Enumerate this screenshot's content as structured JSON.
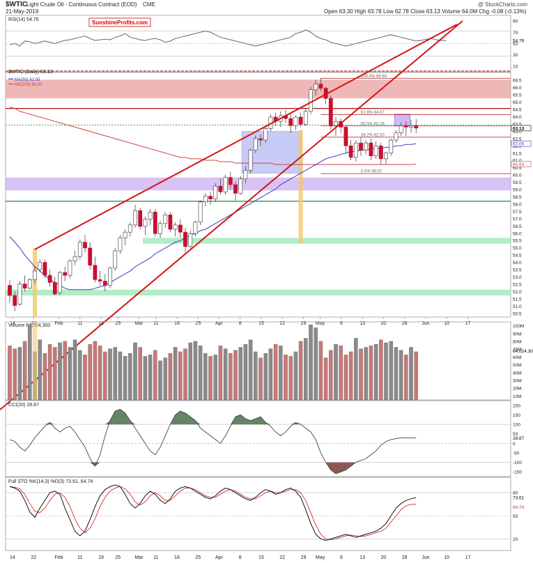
{
  "header": {
    "symbol": "$WTIC",
    "name": "Light Crude Oil - Continuous Contract (EOD)",
    "exchange": "CME",
    "date": "21-May-2019",
    "watermark": "@ StockCharts.com",
    "ohlc": "Open 63.30  High 63.78  Low 62.78  Close 63.13  Volume 64.0M  Chg -0.08 (-0.13%)",
    "brand": "SunshineProfits.com"
  },
  "colors": {
    "up": "#ffffff",
    "down": "#c8102e",
    "ma50": "#3b3bbf",
    "ma200": "#d04040",
    "trend": "#d21414",
    "red_zone": "#e89a9a",
    "purple_zone": "#c9a8f0",
    "green_zone": "#9ee8b8",
    "orange_bar": "#f4c76a",
    "blue_box": "#9aa2ee",
    "dark_green_fill": "#4a6e4a",
    "dark_red_fill": "#7a3a3a"
  },
  "chart_data": [
    {
      "type": "line",
      "title": "RSI(14) 54.76",
      "y_ticks": [
        "90",
        "70",
        "50",
        "30",
        "10"
      ],
      "last_label": "54.76",
      "series": [
        {
          "name": "RSI(14)",
          "values": [
            48,
            50,
            46,
            54,
            53,
            50,
            52,
            54,
            52,
            50,
            53,
            55,
            56,
            58,
            60,
            62,
            58,
            55,
            56,
            57,
            56,
            60,
            62,
            66,
            60,
            58,
            56,
            55,
            57,
            58,
            56,
            52,
            54,
            58,
            60,
            62,
            64,
            66,
            68,
            70,
            68,
            64,
            60,
            58,
            56,
            54,
            52,
            50,
            48,
            46,
            48,
            50,
            52,
            54,
            56,
            58,
            60,
            66,
            68,
            72,
            68,
            62,
            58,
            56,
            52,
            50,
            48,
            46,
            48,
            50,
            52,
            54,
            56,
            58,
            60,
            62,
            64,
            62,
            60,
            58,
            56,
            54,
            55,
            57,
            58,
            56,
            55,
            54.76
          ]
        }
      ]
    },
    {
      "type": "candlestick",
      "title": "$WTIC (Daily) 63.13",
      "legend": [
        "MA(50) 62.05",
        "MA(200) 60.63"
      ],
      "y_range": [
        50,
        67
      ],
      "y_ticks": [
        "66.5",
        "66.0",
        "65.5",
        "65.0",
        "64.5",
        "64.0",
        "63.5",
        "63.0",
        "62.5",
        "62.0",
        "61.5",
        "61.0",
        "60.5",
        "60.0",
        "59.5",
        "59.0",
        "58.5",
        "58.0",
        "57.5",
        "57.0",
        "56.5",
        "56.0",
        "55.5",
        "55.0",
        "54.5",
        "54.0",
        "53.5",
        "53.0",
        "52.5",
        "52.0",
        "51.5",
        "51.0",
        "50.5"
      ],
      "x_ticks": [
        "14",
        "22",
        "Feb",
        "11",
        "19",
        "25",
        "Mar",
        "11",
        "18",
        "25",
        "Apr",
        "8",
        "15",
        "22",
        "29",
        "May",
        "6",
        "13",
        "20",
        "28",
        "Jun",
        "10",
        "17"
      ],
      "right_labels": [
        "63.13",
        "62.05",
        "60.63"
      ],
      "fib_labels": [
        "100.0% 66.60",
        "61.8% 64.07",
        "50.0% 63.28",
        "38.2% 62.50",
        "0.0% 59.97"
      ],
      "candles": [
        [
          52.2,
          52.6,
          51.0,
          51.5
        ],
        [
          51.5,
          51.8,
          50.4,
          50.8
        ],
        [
          50.9,
          52.5,
          50.8,
          52.3
        ],
        [
          52.3,
          52.9,
          51.8,
          52.0
        ],
        [
          52.0,
          52.7,
          51.9,
          52.6
        ],
        [
          52.6,
          53.5,
          52.3,
          53.2
        ],
        [
          53.3,
          54.0,
          53.1,
          53.8
        ],
        [
          53.8,
          54.0,
          52.7,
          52.9
        ],
        [
          52.9,
          53.3,
          52.1,
          52.4
        ],
        [
          52.4,
          52.8,
          51.5,
          51.6
        ],
        [
          51.7,
          53.2,
          51.5,
          53.1
        ],
        [
          53.1,
          53.5,
          52.5,
          52.9
        ],
        [
          52.9,
          54.0,
          52.7,
          53.9
        ],
        [
          53.9,
          54.6,
          53.6,
          54.2
        ],
        [
          54.2,
          55.4,
          54.0,
          55.2
        ],
        [
          55.2,
          55.7,
          54.5,
          54.8
        ],
        [
          54.8,
          55.2,
          53.3,
          53.6
        ],
        [
          53.6,
          54.2,
          52.4,
          52.6
        ],
        [
          52.6,
          53.2,
          52.2,
          52.5
        ],
        [
          52.5,
          53.0,
          51.8,
          52.2
        ],
        [
          52.2,
          53.5,
          52.0,
          53.4
        ],
        [
          53.4,
          54.8,
          53.2,
          54.6
        ],
        [
          54.6,
          55.7,
          54.4,
          55.5
        ],
        [
          55.5,
          56.1,
          55.0,
          55.9
        ],
        [
          55.9,
          56.6,
          55.6,
          56.4
        ],
        [
          56.4,
          57.8,
          56.2,
          57.4
        ],
        [
          57.4,
          57.6,
          56.1,
          56.3
        ],
        [
          56.3,
          57.0,
          55.7,
          56.8
        ],
        [
          56.8,
          57.5,
          56.4,
          57.3
        ],
        [
          57.3,
          57.5,
          55.6,
          55.8
        ],
        [
          55.8,
          56.7,
          55.5,
          56.5
        ],
        [
          56.5,
          57.3,
          56.2,
          57.1
        ],
        [
          57.1,
          57.3,
          55.9,
          56.1
        ],
        [
          56.1,
          56.6,
          55.6,
          56.4
        ],
        [
          56.4,
          56.8,
          55.5,
          55.9
        ],
        [
          55.9,
          56.2,
          54.5,
          54.9
        ],
        [
          54.9,
          56.0,
          54.7,
          55.8
        ],
        [
          55.8,
          56.7,
          55.6,
          56.6
        ],
        [
          56.6,
          58.1,
          56.4,
          58.0
        ],
        [
          58.0,
          58.6,
          57.7,
          58.4
        ],
        [
          58.4,
          58.7,
          57.8,
          58.2
        ],
        [
          58.2,
          59.3,
          58.0,
          59.1
        ],
        [
          59.1,
          59.6,
          58.5,
          58.7
        ],
        [
          58.7,
          59.9,
          58.5,
          59.7
        ],
        [
          59.7,
          60.1,
          58.9,
          59.2
        ],
        [
          59.2,
          59.4,
          58.1,
          58.6
        ],
        [
          58.6,
          59.8,
          58.5,
          59.6
        ],
        [
          59.6,
          60.5,
          59.3,
          60.2
        ],
        [
          60.2,
          61.7,
          60.0,
          61.6
        ],
        [
          61.6,
          62.6,
          61.4,
          62.4
        ],
        [
          62.4,
          62.7,
          61.9,
          62.3
        ],
        [
          62.3,
          63.3,
          62.1,
          63.1
        ],
        [
          63.1,
          64.1,
          62.9,
          63.9
        ],
        [
          63.9,
          64.2,
          63.3,
          63.6
        ],
        [
          63.6,
          64.3,
          63.2,
          64.0
        ],
        [
          64.0,
          64.4,
          63.5,
          63.8
        ],
        [
          63.8,
          64.1,
          62.8,
          63.3
        ],
        [
          63.3,
          64.0,
          63.0,
          63.9
        ],
        [
          63.9,
          64.2,
          63.2,
          63.4
        ],
        [
          63.4,
          64.5,
          63.3,
          64.3
        ],
        [
          64.3,
          66.0,
          64.1,
          65.8
        ],
        [
          65.8,
          66.5,
          65.4,
          66.2
        ],
        [
          66.2,
          66.6,
          65.7,
          65.9
        ],
        [
          65.9,
          66.0,
          64.8,
          65.2
        ],
        [
          65.2,
          65.4,
          63.0,
          63.3
        ],
        [
          63.3,
          63.9,
          62.6,
          63.6
        ],
        [
          63.6,
          63.8,
          62.8,
          63.2
        ],
        [
          63.2,
          63.3,
          61.4,
          61.9
        ],
        [
          61.9,
          62.3,
          60.9,
          61.1
        ],
        [
          61.1,
          62.3,
          60.8,
          62.1
        ],
        [
          62.1,
          62.5,
          61.2,
          61.6
        ],
        [
          61.6,
          62.3,
          61.3,
          62.1
        ],
        [
          62.1,
          62.4,
          60.9,
          61.2
        ],
        [
          61.2,
          62.2,
          61.0,
          61.9
        ],
        [
          61.9,
          62.1,
          60.6,
          61.0
        ],
        [
          61.0,
          61.5,
          60.6,
          61.4
        ],
        [
          61.4,
          62.4,
          61.2,
          62.3
        ],
        [
          62.3,
          63.0,
          62.1,
          62.8
        ],
        [
          62.8,
          63.5,
          62.6,
          63.3
        ],
        [
          63.3,
          63.6,
          62.6,
          63.2
        ],
        [
          63.2,
          63.7,
          62.8,
          63.3
        ],
        [
          63.3,
          63.78,
          62.78,
          63.13
        ]
      ],
      "ma50": [
        55.6,
        55.2,
        54.8,
        54.3,
        53.9,
        53.5,
        53.2,
        52.9,
        52.6,
        52.4,
        52.2,
        52.0,
        51.9,
        51.9,
        51.9,
        51.9,
        51.9,
        52.0,
        52.1,
        52.2,
        52.4,
        52.6,
        52.8,
        53.0,
        53.2,
        53.5,
        53.7,
        53.9,
        54.1,
        54.4,
        54.6,
        54.8,
        55.0,
        55.2,
        55.3,
        55.5,
        55.7,
        55.8,
        56.0,
        56.1,
        56.3,
        56.5,
        56.7,
        56.9,
        57.1,
        57.3,
        57.5,
        57.7,
        57.9,
        58.1,
        58.3,
        58.5,
        58.7,
        58.9,
        59.2,
        59.4,
        59.6,
        59.8,
        60.0,
        60.2,
        60.4,
        60.6,
        60.8,
        61.0,
        61.1,
        61.2,
        61.3,
        61.4,
        61.5,
        61.5,
        61.6,
        61.6,
        61.7,
        61.7,
        61.7,
        61.8,
        61.8,
        61.9,
        61.9,
        62.0,
        62.0,
        62.05
      ],
      "ma200": [
        64.6,
        64.5,
        64.3,
        64.2,
        64.1,
        64.0,
        63.9,
        63.8,
        63.7,
        63.6,
        63.5,
        63.4,
        63.3,
        63.2,
        63.1,
        63.0,
        62.9,
        62.8,
        62.7,
        62.6,
        62.5,
        62.4,
        62.3,
        62.2,
        62.1,
        62.0,
        61.9,
        61.8,
        61.7,
        61.6,
        61.5,
        61.4,
        61.3,
        61.2,
        61.1,
        61.1,
        61.0,
        61.0,
        61.0,
        60.9,
        60.9,
        60.9,
        60.8,
        60.8,
        60.8,
        60.7,
        60.7,
        60.7,
        60.7,
        60.7,
        60.7,
        60.7,
        60.7,
        60.6,
        60.6,
        60.6,
        60.6,
        60.6,
        60.6,
        60.6,
        60.6,
        60.6,
        60.6,
        60.6,
        60.6,
        60.6,
        60.6,
        60.6,
        60.6,
        60.6,
        60.6,
        60.6,
        60.6,
        60.6,
        60.6,
        60.6,
        60.6,
        60.6,
        60.6,
        60.6,
        60.6,
        60.63
      ]
    },
    {
      "type": "bar",
      "title": "Volume 64,024,300",
      "y_ticks": [
        "100M",
        "90M",
        "80M",
        "70M",
        "60M",
        "50M",
        "40M",
        "30M",
        "20M",
        "10M"
      ],
      "last_label": "64,024,300",
      "values": [
        72,
        68,
        70,
        78,
        100,
        64,
        80,
        62,
        74,
        70,
        76,
        78,
        70,
        80,
        66,
        60,
        74,
        78,
        72,
        64,
        68,
        70,
        64,
        58,
        62,
        76,
        70,
        58,
        60,
        66,
        52,
        56,
        62,
        70,
        64,
        68,
        76,
        78,
        72,
        62,
        58,
        60,
        72,
        68,
        62,
        66,
        70,
        74,
        80,
        64,
        56,
        62,
        68,
        74,
        72,
        60,
        58,
        64,
        78,
        82,
        100,
        96,
        78,
        56,
        66,
        74,
        72,
        60,
        64,
        82,
        68,
        70,
        72,
        74,
        80,
        76,
        78,
        70,
        66,
        60,
        70,
        64
      ]
    },
    {
      "type": "area",
      "title": "CCI(20) 28.87",
      "y_ticks": [
        "200",
        "150",
        "100",
        "50",
        "0",
        "-50",
        "-100",
        "-150"
      ],
      "last_label": "28.87",
      "values": [
        20,
        10,
        -20,
        -40,
        -10,
        30,
        60,
        90,
        110,
        80,
        60,
        80,
        90,
        60,
        20,
        -20,
        -80,
        -120,
        -60,
        40,
        120,
        170,
        180,
        160,
        120,
        80,
        40,
        0,
        -40,
        -60,
        -20,
        40,
        100,
        150,
        170,
        160,
        140,
        120,
        80,
        60,
        40,
        20,
        0,
        40,
        90,
        140,
        150,
        130,
        120,
        130,
        140,
        110,
        90,
        60,
        40,
        60,
        90,
        110,
        100,
        80,
        60,
        20,
        -50,
        -100,
        -140,
        -160,
        -150,
        -140,
        -120,
        -100,
        -90,
        -80,
        -60,
        -40,
        -10,
        10,
        20,
        25,
        28.87,
        28.87,
        28.87,
        28.87
      ]
    },
    {
      "type": "line",
      "title": "Full STO %K(14,3) %D(3) 73.61, 64.74",
      "y_ticks": [
        "80",
        "50",
        "20"
      ],
      "right_labels": [
        "73.61",
        "64.74"
      ],
      "series": [
        {
          "name": "%K(14,3)",
          "values": [
            88,
            86,
            82,
            70,
            55,
            48,
            60,
            70,
            80,
            82,
            78,
            60,
            45,
            30,
            24,
            30,
            45,
            62,
            76,
            84,
            88,
            90,
            88,
            78,
            66,
            60,
            66,
            76,
            82,
            78,
            70,
            66,
            72,
            82,
            86,
            88,
            86,
            82,
            78,
            74,
            72,
            76,
            82,
            86,
            84,
            80,
            76,
            72,
            70,
            74,
            80,
            84,
            82,
            78,
            80,
            84,
            86,
            82,
            74,
            58,
            40,
            26,
            20,
            18,
            20,
            22,
            24,
            26,
            24,
            22,
            24,
            26,
            28,
            30,
            34,
            40,
            50,
            60,
            66,
            70,
            72,
            73.61
          ]
        },
        {
          "name": "%D(3)",
          "values": [
            88,
            87,
            85,
            78,
            66,
            56,
            54,
            60,
            70,
            78,
            80,
            74,
            62,
            46,
            34,
            28,
            34,
            46,
            62,
            74,
            82,
            86,
            88,
            85,
            78,
            68,
            64,
            68,
            76,
            80,
            76,
            70,
            70,
            76,
            82,
            86,
            86,
            84,
            80,
            76,
            74,
            74,
            78,
            82,
            84,
            82,
            78,
            74,
            72,
            72,
            76,
            80,
            82,
            80,
            80,
            82,
            84,
            84,
            80,
            70,
            54,
            38,
            26,
            20,
            19,
            20,
            22,
            24,
            25,
            24,
            23,
            24,
            26,
            28,
            30,
            34,
            42,
            50,
            58,
            63,
            65,
            64.74
          ]
        }
      ]
    }
  ]
}
